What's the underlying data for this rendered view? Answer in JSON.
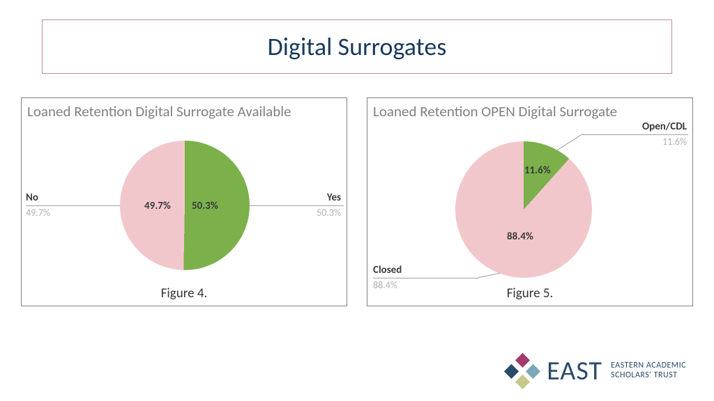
{
  "title": "Digital Surrogates",
  "title_color": "#1a3a5c",
  "title_border": "#c08a9a",
  "chart_left": {
    "type": "pie",
    "title": "Loaned Retention Digital Surrogate Available",
    "figure_caption": "Figure 4.",
    "slices": [
      {
        "name": "Yes",
        "value": 50.3,
        "label": "50.3%",
        "color": "#7bb04a",
        "leader_pct": "50.3%"
      },
      {
        "name": "No",
        "value": 49.7,
        "label": "49.7%",
        "color": "#f2c7cc",
        "leader_pct": "49.7%"
      }
    ],
    "pie_diameter": 186,
    "title_fontsize": 21,
    "label_fontsize": 15,
    "caption_fontsize": 19
  },
  "chart_right": {
    "type": "pie",
    "title": "Loaned Retention OPEN Digital Surrogate",
    "figure_caption": "Figure 5.",
    "slices": [
      {
        "name": "Open/CDL",
        "value": 11.6,
        "label": "11.6%",
        "color": "#7bb04a",
        "leader_pct": "11.6%"
      },
      {
        "name": "Closed",
        "value": 88.4,
        "label": "88.4%",
        "color": "#f2c7cc",
        "leader_pct": "88.4%"
      }
    ],
    "pie_diameter": 196,
    "title_fontsize": 21,
    "label_fontsize": 15,
    "caption_fontsize": 19
  },
  "logo": {
    "wordmark": "EAST",
    "sub1": "EASTERN ACADEMIC",
    "sub2": "SCHOLARS' TRUST",
    "colors": {
      "top": "#a23a6b",
      "right": "#7ba8b8",
      "bottom": "#c5c88a",
      "left": "#2a4a6a"
    },
    "text_color": "#2a4a6a"
  },
  "panel_border": "#808080",
  "leader_label_color": "#3a3a3a",
  "leader_pct_color": "#b0b0b0"
}
